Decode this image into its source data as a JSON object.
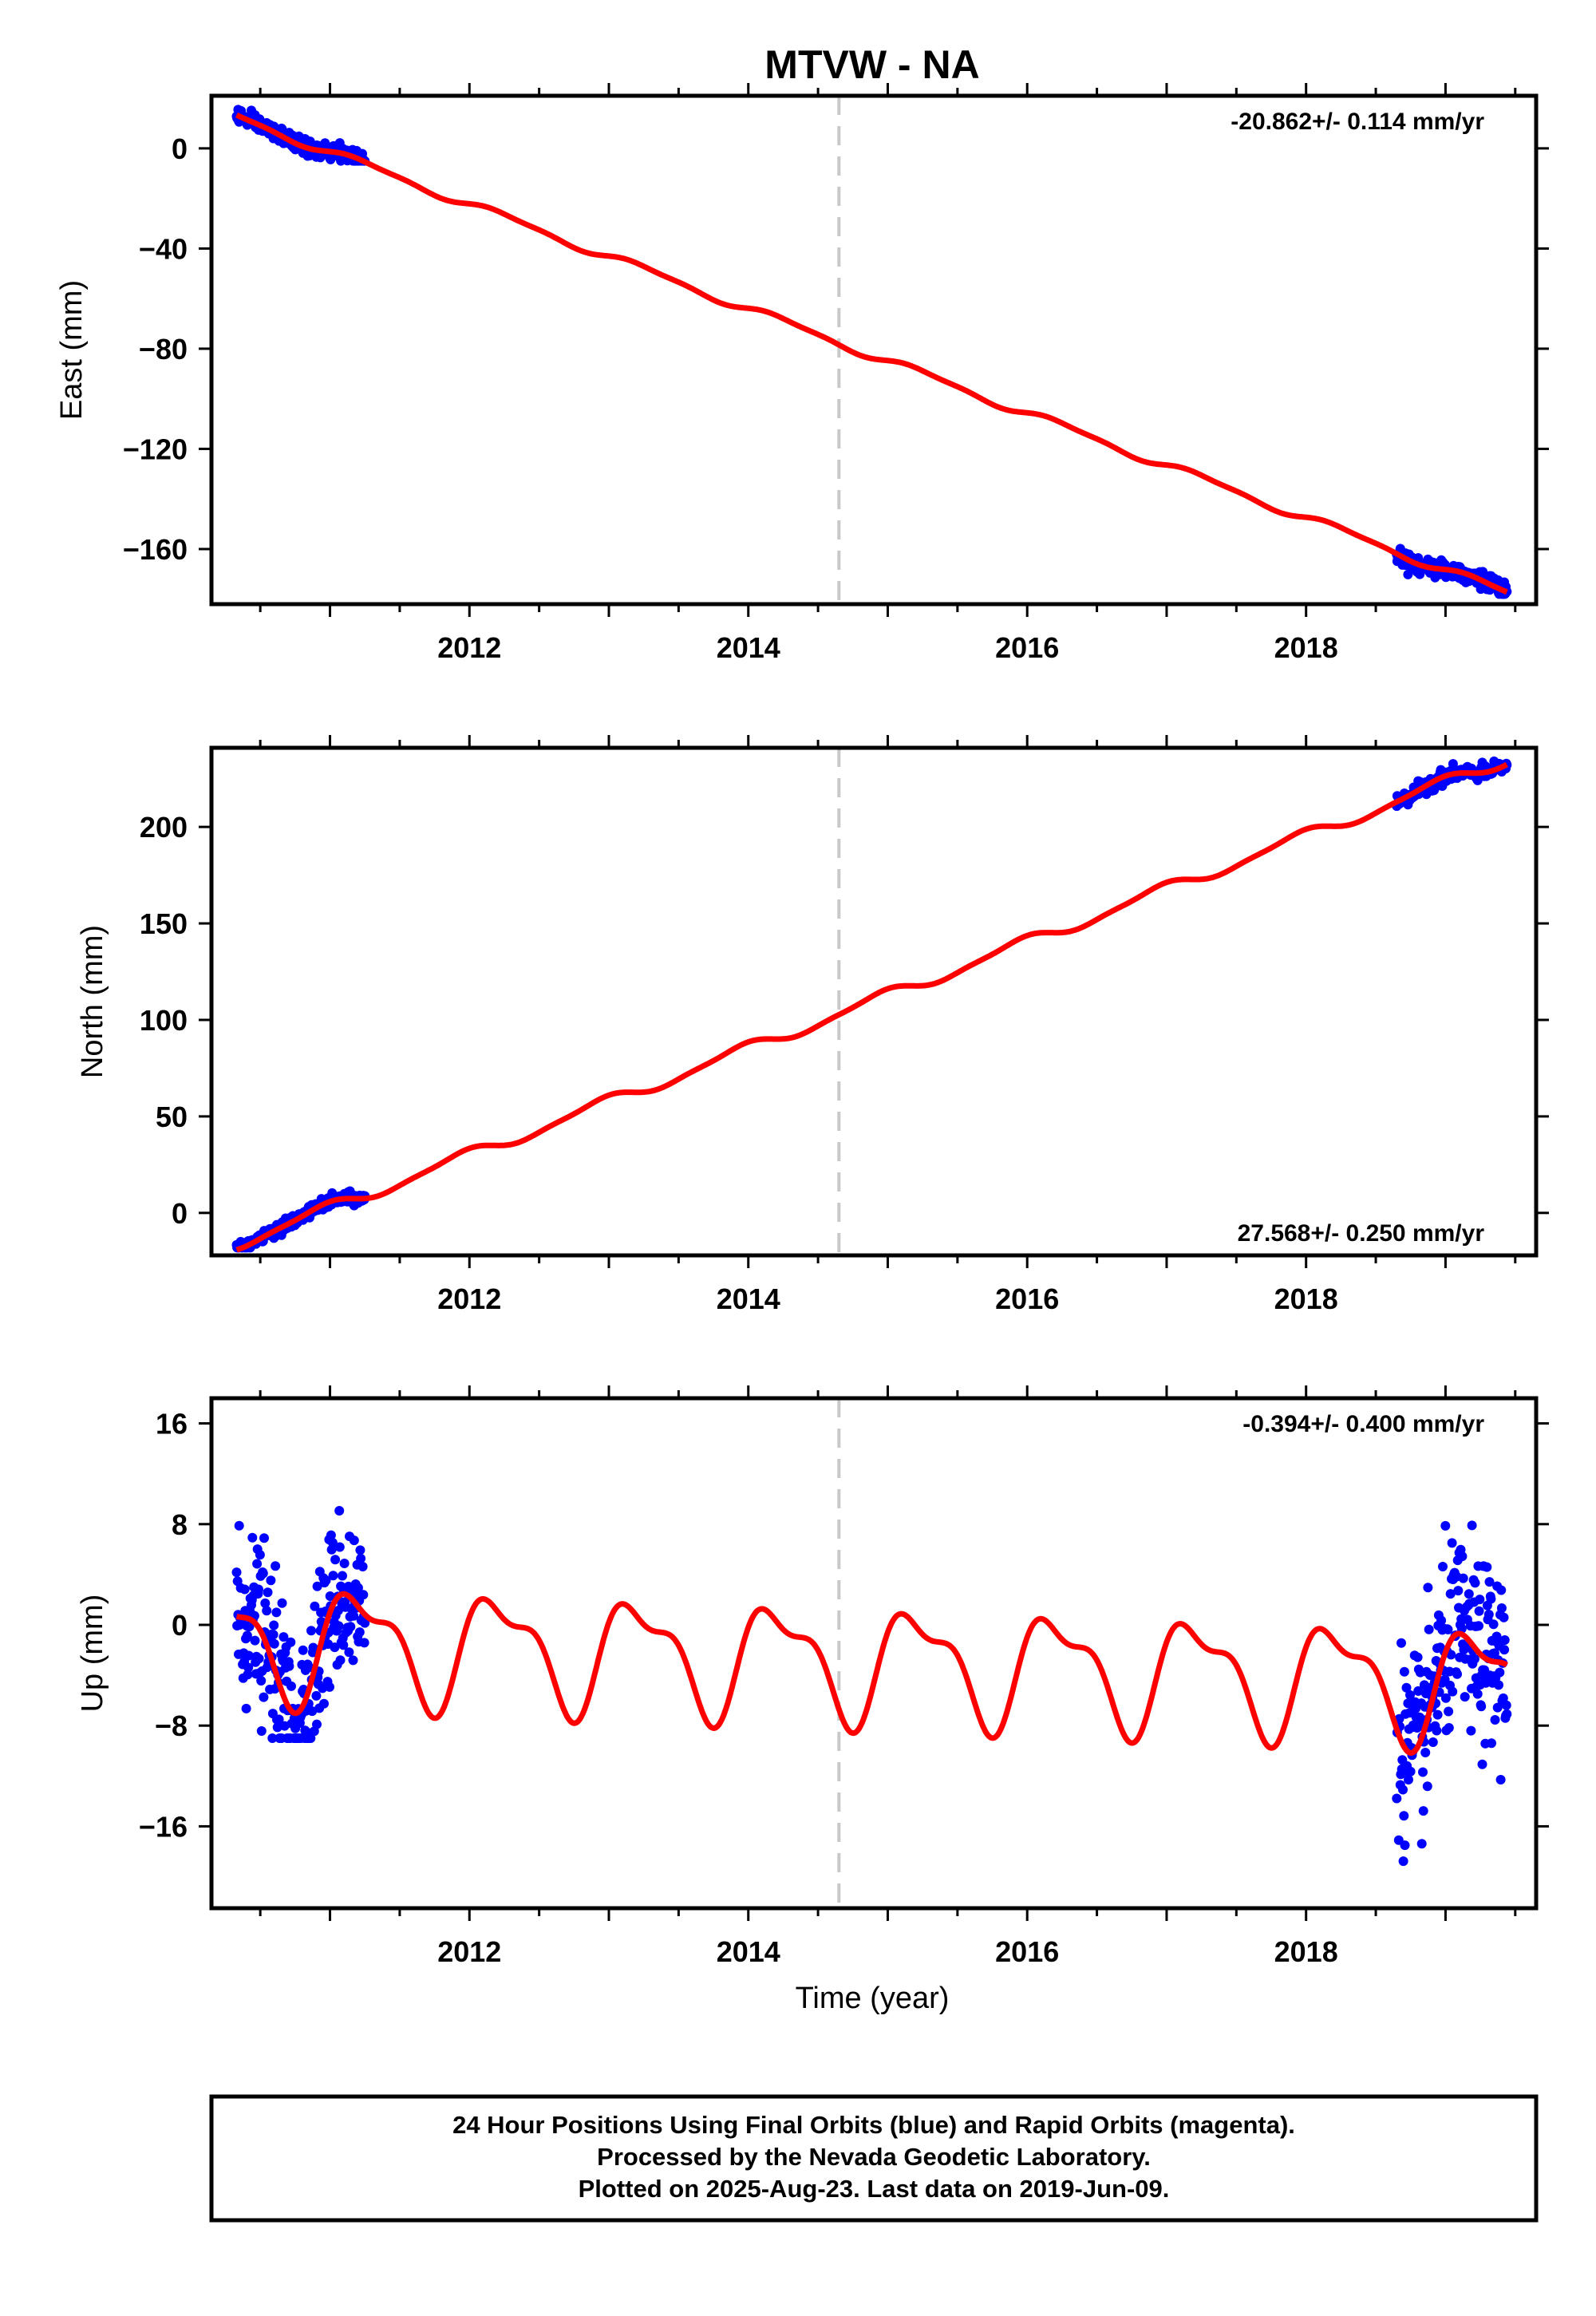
{
  "chart_data": {
    "type": "scatter",
    "title": "MTVW - NA",
    "xlabel": "Time (year)",
    "xlim": [
      2010.15,
      2019.65
    ],
    "x_ticks": [
      2012,
      2014,
      2016,
      2018
    ],
    "x_tick_labels": [
      "2012",
      "2014",
      "2016",
      "2018"
    ],
    "vline_x": 2014.65,
    "marker_color": "#0000ff",
    "fit_color": "#ff0000",
    "vline_color": "#c8c8c8",
    "data_segments": [
      [
        2010.33,
        2011.25
      ],
      [
        2018.65,
        2019.44
      ]
    ],
    "panels": [
      {
        "ylabel": "East (mm)",
        "ylim": [
          -182,
          21
        ],
        "yticks": [
          0,
          -40,
          -80,
          -120,
          -160
        ],
        "ytick_labels": [
          "0",
          "−40",
          "−80",
          "−120",
          "−160"
        ],
        "rate_label": "-20.862+/- 0.114 mm/yr",
        "rate_position": "top-right",
        "trend": {
          "slope": -20.862,
          "t0": 2010.33,
          "y0": 12.5
        },
        "seasonal": {
          "annual_amp": 1.5,
          "annual_phase": 0.0,
          "semiannual_amp": 0.5,
          "semiannual_phase": 0.4
        },
        "series": [
          {
            "name": "Final Orbits (blue)",
            "x_range": [
              2010.33,
              2011.25
            ],
            "y_range": [
              -5,
              16
            ],
            "spread_mm": 1.5
          },
          {
            "name": "Final Orbits (blue)",
            "x_range": [
              2018.65,
              2019.44
            ],
            "y_range": [
              -178,
              -156
            ],
            "spread_mm": 1.8
          }
        ]
      },
      {
        "ylabel": "North (mm)",
        "ylim": [
          -22,
          241
        ],
        "yticks": [
          0,
          50,
          100,
          150,
          200
        ],
        "ytick_labels": [
          "0",
          "50",
          "100",
          "150",
          "200"
        ],
        "rate_label": "27.568+/- 0.250 mm/yr",
        "rate_position": "bottom-right",
        "trend": {
          "slope": 27.568,
          "t0": 2010.33,
          "y0": -16
        },
        "seasonal": {
          "annual_amp": 3.0,
          "annual_phase": 2.0,
          "semiannual_amp": 0.8,
          "semiannual_phase": 1.0
        },
        "series": [
          {
            "name": "Final Orbits (blue)",
            "x_range": [
              2010.33,
              2011.25
            ],
            "y_range": [
              -18,
              14
            ],
            "spread_mm": 1.5
          },
          {
            "name": "Final Orbits (blue)",
            "x_range": [
              2018.65,
              2019.44
            ],
            "y_range": [
              208,
              237
            ],
            "spread_mm": 1.8
          }
        ]
      },
      {
        "ylabel": "Up (mm)",
        "ylim": [
          -22.5,
          18
        ],
        "yticks": [
          16,
          8,
          0,
          -8,
          -16
        ],
        "ytick_labels": [
          "16",
          "8",
          "0",
          "−8",
          "−16"
        ],
        "rate_label": "-0.394+/- 0.400 mm/yr",
        "rate_position": "top-right",
        "trend": {
          "slope": -0.394,
          "t0": 2010.33,
          "y0": -1.2
        },
        "seasonal": {
          "annual_amp": 4.1,
          "annual_phase": 0.2,
          "semiannual_amp": 1.7,
          "semiannual_phase": 1.3
        },
        "series": [
          {
            "name": "Final Orbits (blue)",
            "x_range": [
              2010.33,
              2011.25
            ],
            "y_range": [
              -9,
              16.5
            ],
            "spread_mm": 3.2
          },
          {
            "name": "Final Orbits (blue)",
            "x_range": [
              2018.65,
              2019.44
            ],
            "y_range": [
              -22,
              13
            ],
            "spread_mm": 3.6
          }
        ]
      }
    ],
    "footer": [
      "24 Hour Positions Using Final Orbits (blue) and Rapid Orbits (magenta).",
      "Processed by the Nevada Geodetic Laboratory.",
      "Plotted on 2025-Aug-23. Last data on 2019-Jun-09."
    ]
  }
}
